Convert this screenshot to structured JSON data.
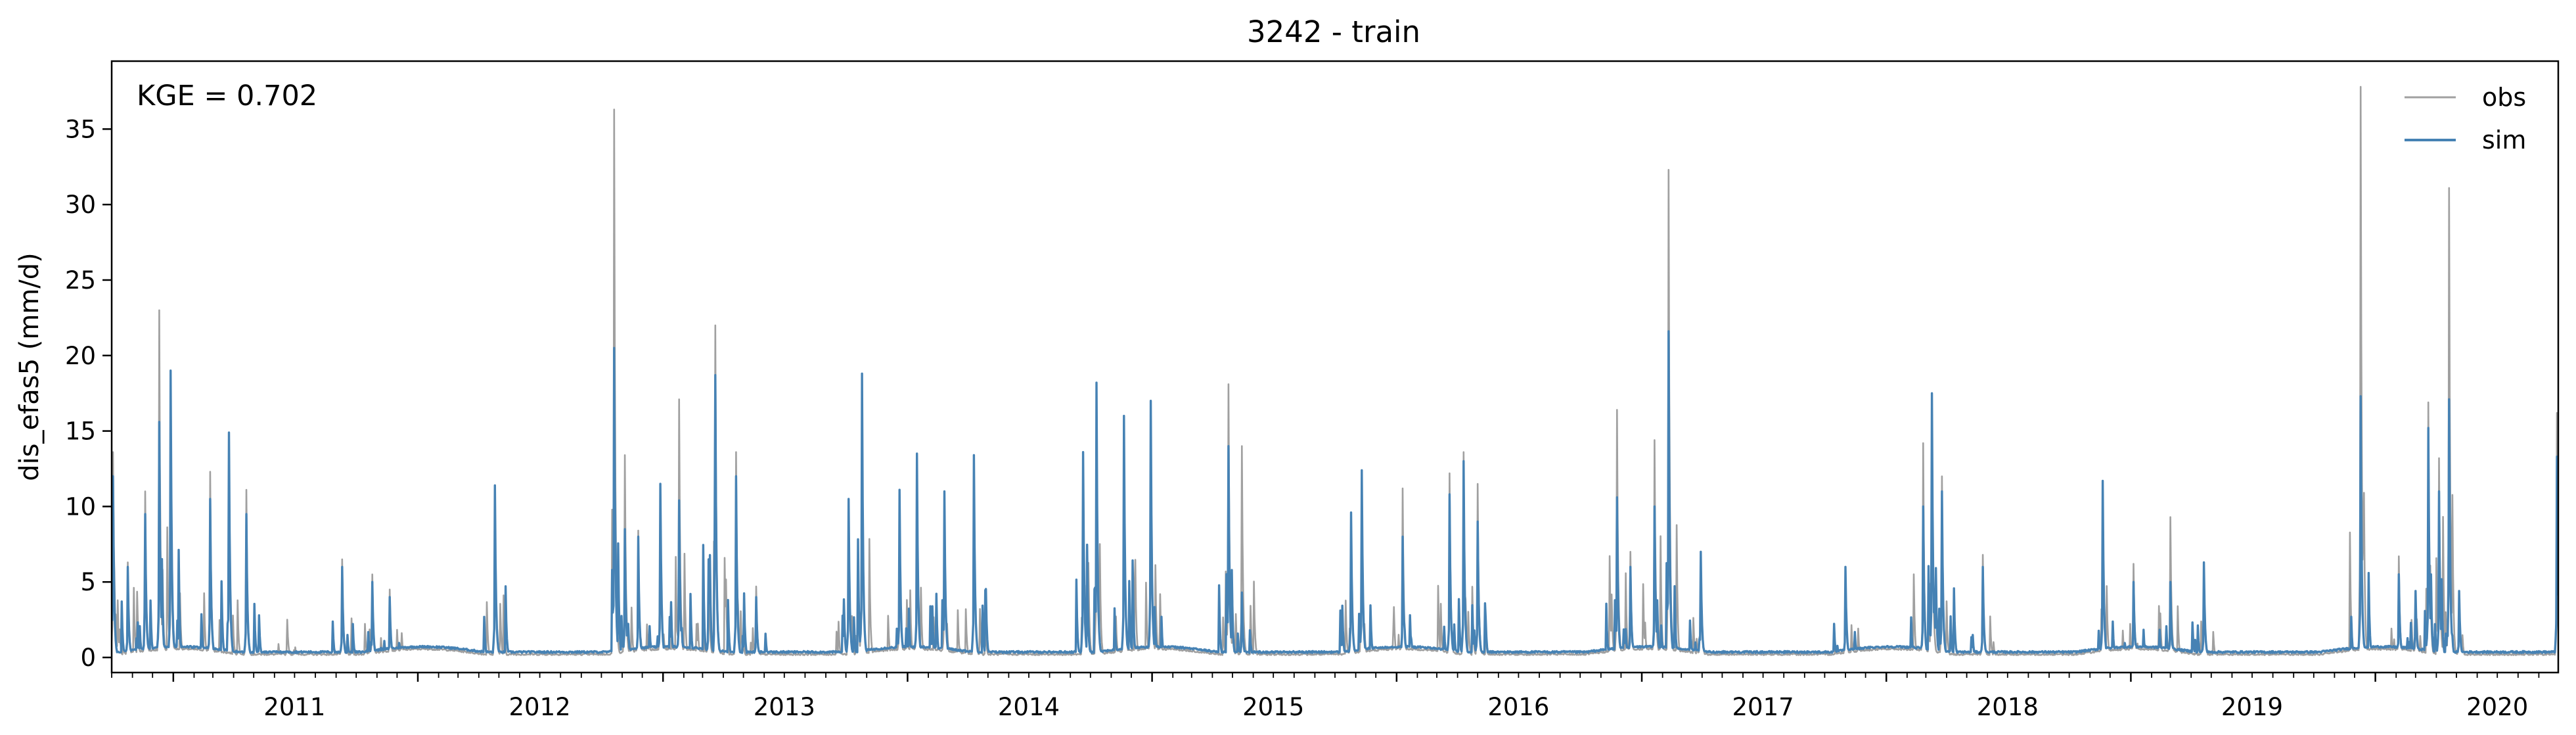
{
  "chart_data": {
    "type": "line",
    "title": "3242 - train",
    "xlabel": "",
    "ylabel": "dis_efas5 (mm/d)",
    "annotation": "KGE = 0.702",
    "xlim": [
      "2010-10-01",
      "2020-09-30"
    ],
    "ylim": [
      -1.0,
      39.5
    ],
    "yticks": [
      0,
      5,
      10,
      15,
      20,
      25,
      30,
      35
    ],
    "ytick_labels": [
      "0",
      "5",
      "10",
      "15",
      "20",
      "25",
      "30",
      "35"
    ],
    "xtick_years": [
      2011,
      2012,
      2013,
      2014,
      2015,
      2016,
      2017,
      2018,
      2019,
      2020
    ],
    "xtick_labels": [
      "2011",
      "2012",
      "2013",
      "2014",
      "2015",
      "2016",
      "2017",
      "2018",
      "2019",
      "2020"
    ],
    "grid": false,
    "legend_position": "top-right",
    "legend": [
      "obs",
      "sim"
    ],
    "series": [
      {
        "name": "obs",
        "color": "#a0a0a0",
        "peaks": [
          [
            "2010-10-03",
            13.6
          ],
          [
            "2010-10-25",
            6.3
          ],
          [
            "2010-11-20",
            11.0
          ],
          [
            "2010-12-11",
            23.0
          ],
          [
            "2010-12-28",
            13.0
          ],
          [
            "2011-02-25",
            12.3
          ],
          [
            "2011-04-20",
            11.1
          ],
          [
            "2011-06-20",
            2.5
          ],
          [
            "2011-09-10",
            6.5
          ],
          [
            "2011-10-25",
            5.5
          ],
          [
            "2011-11-20",
            4.5
          ],
          [
            "2012-04-25",
            11.3
          ],
          [
            "2012-10-20",
            36.3
          ],
          [
            "2012-11-05",
            13.4
          ],
          [
            "2012-11-25",
            8.4
          ],
          [
            "2012-12-28",
            11.4
          ],
          [
            "2013-01-25",
            17.1
          ],
          [
            "2013-03-10",
            6.5
          ],
          [
            "2013-03-20",
            22.0
          ],
          [
            "2013-04-20",
            13.6
          ],
          [
            "2013-05-20",
            4.7
          ],
          [
            "2013-10-05",
            10.4
          ],
          [
            "2013-10-25",
            18.7
          ],
          [
            "2013-12-20",
            9.8
          ],
          [
            "2014-01-15",
            13.5
          ],
          [
            "2014-02-25",
            11.0
          ],
          [
            "2014-04-10",
            13.4
          ],
          [
            "2014-09-20",
            13.6
          ],
          [
            "2014-10-10",
            18.2
          ],
          [
            "2014-11-20",
            16.0
          ],
          [
            "2014-12-30",
            17.0
          ],
          [
            "2015-04-25",
            18.1
          ],
          [
            "2015-05-15",
            14.0
          ],
          [
            "2015-10-25",
            9.5
          ],
          [
            "2015-11-10",
            12.4
          ],
          [
            "2016-01-10",
            11.2
          ],
          [
            "2016-03-20",
            12.2
          ],
          [
            "2016-04-10",
            13.6
          ],
          [
            "2016-05-01",
            11.5
          ],
          [
            "2016-11-25",
            16.4
          ],
          [
            "2016-12-15",
            7.0
          ],
          [
            "2017-01-20",
            14.4
          ],
          [
            "2017-02-10",
            32.3
          ],
          [
            "2017-03-30",
            7.0
          ],
          [
            "2017-11-01",
            5.8
          ],
          [
            "2018-02-25",
            14.2
          ],
          [
            "2018-03-10",
            17.5
          ],
          [
            "2018-03-25",
            12.0
          ],
          [
            "2018-05-25",
            6.8
          ],
          [
            "2018-11-20",
            11.7
          ],
          [
            "2019-01-05",
            6.2
          ],
          [
            "2019-03-01",
            9.3
          ],
          [
            "2019-04-20",
            6.3
          ],
          [
            "2019-12-10",
            37.8
          ],
          [
            "2020-02-05",
            6.7
          ],
          [
            "2020-03-01",
            4.4
          ],
          [
            "2020-03-20",
            16.9
          ],
          [
            "2020-04-05",
            13.2
          ],
          [
            "2020-04-20",
            31.1
          ],
          [
            "2020-05-05",
            4.4
          ],
          [
            "2020-09-28",
            16.2
          ]
        ]
      },
      {
        "name": "sim",
        "color": "#4682b4",
        "peaks": [
          [
            "2010-10-03",
            12.0
          ],
          [
            "2010-10-25",
            6.0
          ],
          [
            "2010-11-20",
            9.5
          ],
          [
            "2010-12-11",
            15.6
          ],
          [
            "2010-12-28",
            19.0
          ],
          [
            "2011-02-25",
            10.5
          ],
          [
            "2011-03-25",
            14.9
          ],
          [
            "2011-04-20",
            9.5
          ],
          [
            "2011-09-10",
            6.0
          ],
          [
            "2011-10-25",
            5.0
          ],
          [
            "2011-11-20",
            4.0
          ],
          [
            "2012-04-25",
            11.4
          ],
          [
            "2012-10-20",
            20.5
          ],
          [
            "2012-11-05",
            8.5
          ],
          [
            "2012-11-25",
            8.0
          ],
          [
            "2012-12-28",
            11.5
          ],
          [
            "2013-01-25",
            10.4
          ],
          [
            "2013-03-10",
            6.5
          ],
          [
            "2013-03-20",
            18.7
          ],
          [
            "2013-04-20",
            12.0
          ],
          [
            "2013-05-20",
            4.0
          ],
          [
            "2013-10-05",
            10.5
          ],
          [
            "2013-10-25",
            18.8
          ],
          [
            "2013-12-20",
            11.1
          ],
          [
            "2014-01-15",
            13.5
          ],
          [
            "2014-02-25",
            11.0
          ],
          [
            "2014-04-10",
            13.4
          ],
          [
            "2014-09-20",
            13.6
          ],
          [
            "2014-10-10",
            18.2
          ],
          [
            "2014-11-20",
            16.0
          ],
          [
            "2014-12-30",
            17.0
          ],
          [
            "2015-04-25",
            14.0
          ],
          [
            "2015-05-15",
            4.3
          ],
          [
            "2015-10-25",
            9.6
          ],
          [
            "2015-11-10",
            12.4
          ],
          [
            "2016-01-10",
            8.0
          ],
          [
            "2016-03-20",
            10.8
          ],
          [
            "2016-04-10",
            13.0
          ],
          [
            "2016-05-01",
            9.0
          ],
          [
            "2016-11-25",
            10.6
          ],
          [
            "2016-12-15",
            6.0
          ],
          [
            "2017-01-20",
            10.0
          ],
          [
            "2017-02-10",
            21.6
          ],
          [
            "2017-03-30",
            7.0
          ],
          [
            "2017-11-01",
            6.0
          ],
          [
            "2018-02-25",
            10.0
          ],
          [
            "2018-03-10",
            17.5
          ],
          [
            "2018-03-25",
            11.0
          ],
          [
            "2018-05-25",
            6.0
          ],
          [
            "2018-11-20",
            11.7
          ],
          [
            "2019-01-05",
            5.0
          ],
          [
            "2019-03-01",
            5.0
          ],
          [
            "2019-04-20",
            6.3
          ],
          [
            "2019-12-10",
            17.3
          ],
          [
            "2020-02-05",
            5.5
          ],
          [
            "2020-03-01",
            4.4
          ],
          [
            "2020-03-20",
            15.2
          ],
          [
            "2020-04-05",
            11.0
          ],
          [
            "2020-04-20",
            17.1
          ],
          [
            "2020-05-05",
            4.4
          ],
          [
            "2020-09-28",
            13.3
          ]
        ]
      }
    ]
  }
}
